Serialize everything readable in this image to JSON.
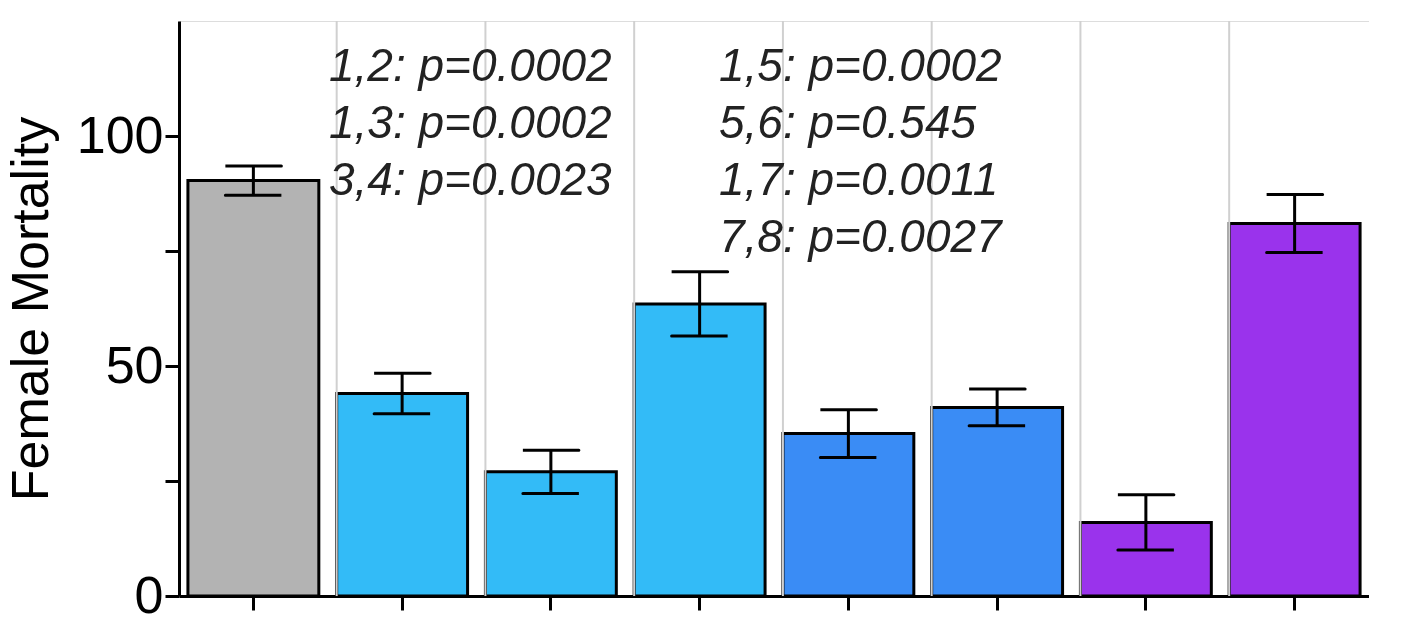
{
  "chart_data": {
    "type": "bar",
    "ylabel": "Female Mortality",
    "categories": [
      null,
      null,
      null,
      null,
      null,
      null,
      null,
      null
    ],
    "values": [
      90.3,
      44,
      27,
      63.5,
      35.3,
      41,
      16,
      81
    ],
    "errors": [
      3.2,
      4.4,
      4.7,
      7,
      5.2,
      4,
      6,
      6.3
    ],
    "colors": [
      "#b3b3b3",
      "#33bbf7",
      "#33bbf7",
      "#33bbf7",
      "#3a8cf5",
      "#3a8cf5",
      "#9a33ec",
      "#9a33ec"
    ],
    "ylim": [
      0,
      125
    ],
    "yticks": [
      0,
      {
        "value": 25,
        "label": null
      },
      50,
      {
        "value": 75,
        "label": null
      },
      100
    ],
    "tick_labels": "y",
    "grid": "x",
    "annotations": [
      "1,2: p=0.0002",
      "1,3: p=0.0002",
      "3,4: p=0.0023",
      "1,5: p=0.0002",
      "5,6: p=0.545",
      "1,7: p=0.0011",
      "7,8: p=0.0027"
    ]
  }
}
